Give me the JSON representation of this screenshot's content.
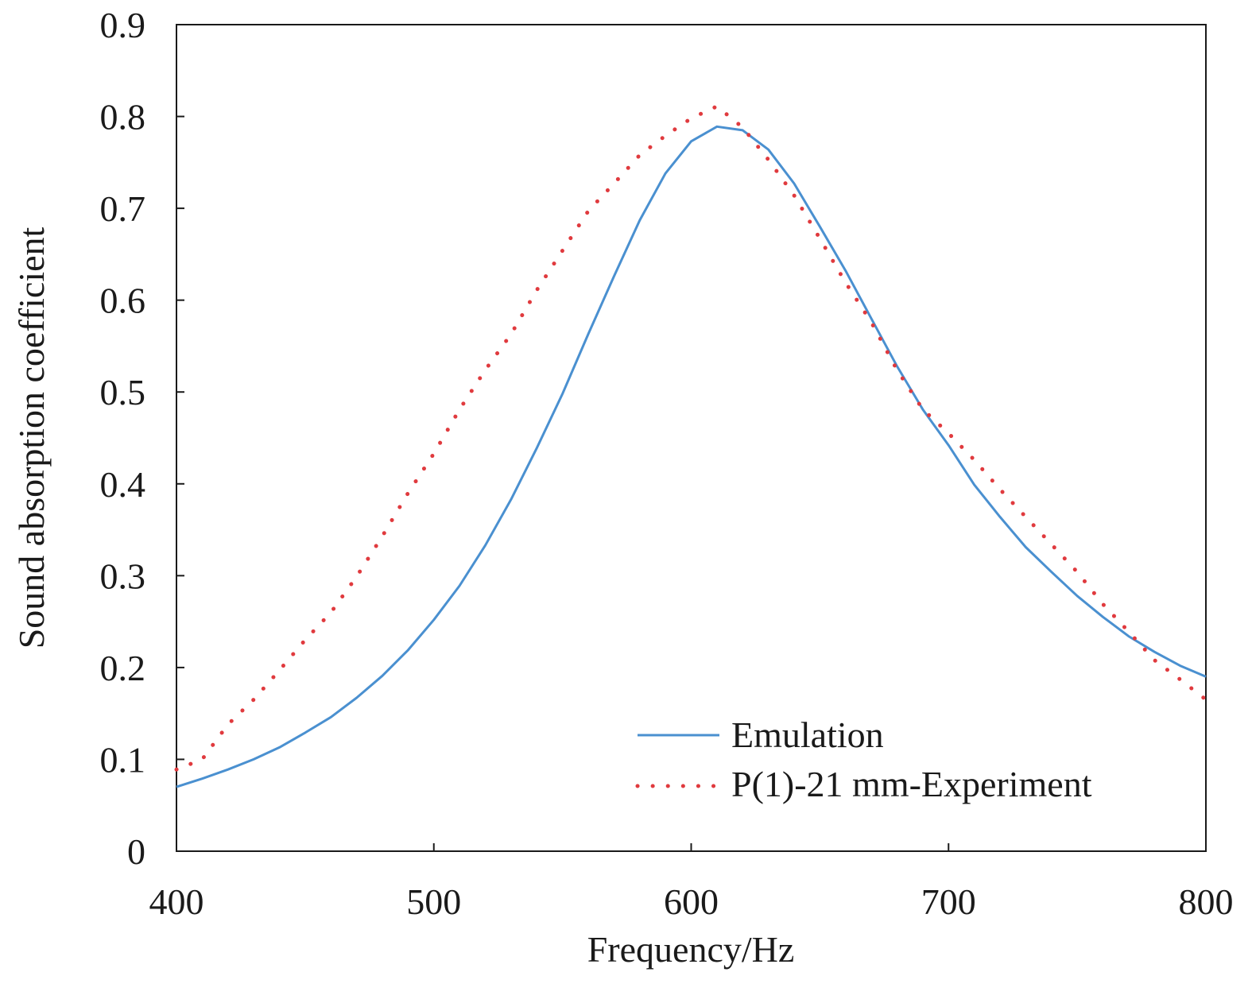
{
  "chart_data": {
    "type": "line",
    "title": "",
    "xlabel": "Frequency/Hz",
    "ylabel": "Sound absorption coefficient",
    "xlim": [
      400,
      800
    ],
    "ylim": [
      0,
      0.9
    ],
    "xticks": [
      "400",
      "500",
      "600",
      "700",
      "800"
    ],
    "yticks": [
      "0",
      "0.1",
      "0.2",
      "0.3",
      "0.4",
      "0.5",
      "0.6",
      "0.7",
      "0.8",
      "0.9"
    ],
    "legend_position": "bottom-right",
    "grid": false,
    "x": [
      400,
      410,
      420,
      430,
      440,
      450,
      460,
      470,
      480,
      490,
      500,
      510,
      520,
      530,
      540,
      550,
      560,
      570,
      580,
      590,
      600,
      610,
      620,
      630,
      640,
      650,
      660,
      670,
      680,
      690,
      700,
      710,
      720,
      730,
      740,
      750,
      760,
      770,
      780,
      790,
      800
    ],
    "series": [
      {
        "name": "Emulation",
        "style": "solid",
        "color": "#4a90d0",
        "values": [
          0.07,
          0.079,
          0.089,
          0.1,
          0.113,
          0.129,
          0.146,
          0.167,
          0.191,
          0.219,
          0.252,
          0.289,
          0.333,
          0.383,
          0.439,
          0.498,
          0.563,
          0.626,
          0.687,
          0.738,
          0.773,
          0.789,
          0.785,
          0.764,
          0.727,
          0.68,
          0.632,
          0.58,
          0.528,
          0.481,
          0.442,
          0.399,
          0.364,
          0.331,
          0.304,
          0.278,
          0.255,
          0.234,
          0.217,
          0.202,
          0.19
        ]
      },
      {
        "name": "P(1)-21 mm-Experiment",
        "style": "dotted",
        "color": "#e03a3e",
        "values": [
          0.089,
          0.1,
          0.138,
          0.165,
          0.197,
          0.23,
          0.26,
          0.299,
          0.343,
          0.39,
          0.433,
          0.481,
          0.524,
          0.563,
          0.611,
          0.654,
          0.697,
          0.727,
          0.758,
          0.779,
          0.798,
          0.811,
          0.788,
          0.753,
          0.714,
          0.667,
          0.619,
          0.576,
          0.524,
          0.481,
          0.455,
          0.426,
          0.394,
          0.364,
          0.334,
          0.304,
          0.269,
          0.239,
          0.208,
          0.187,
          0.165
        ]
      }
    ]
  }
}
